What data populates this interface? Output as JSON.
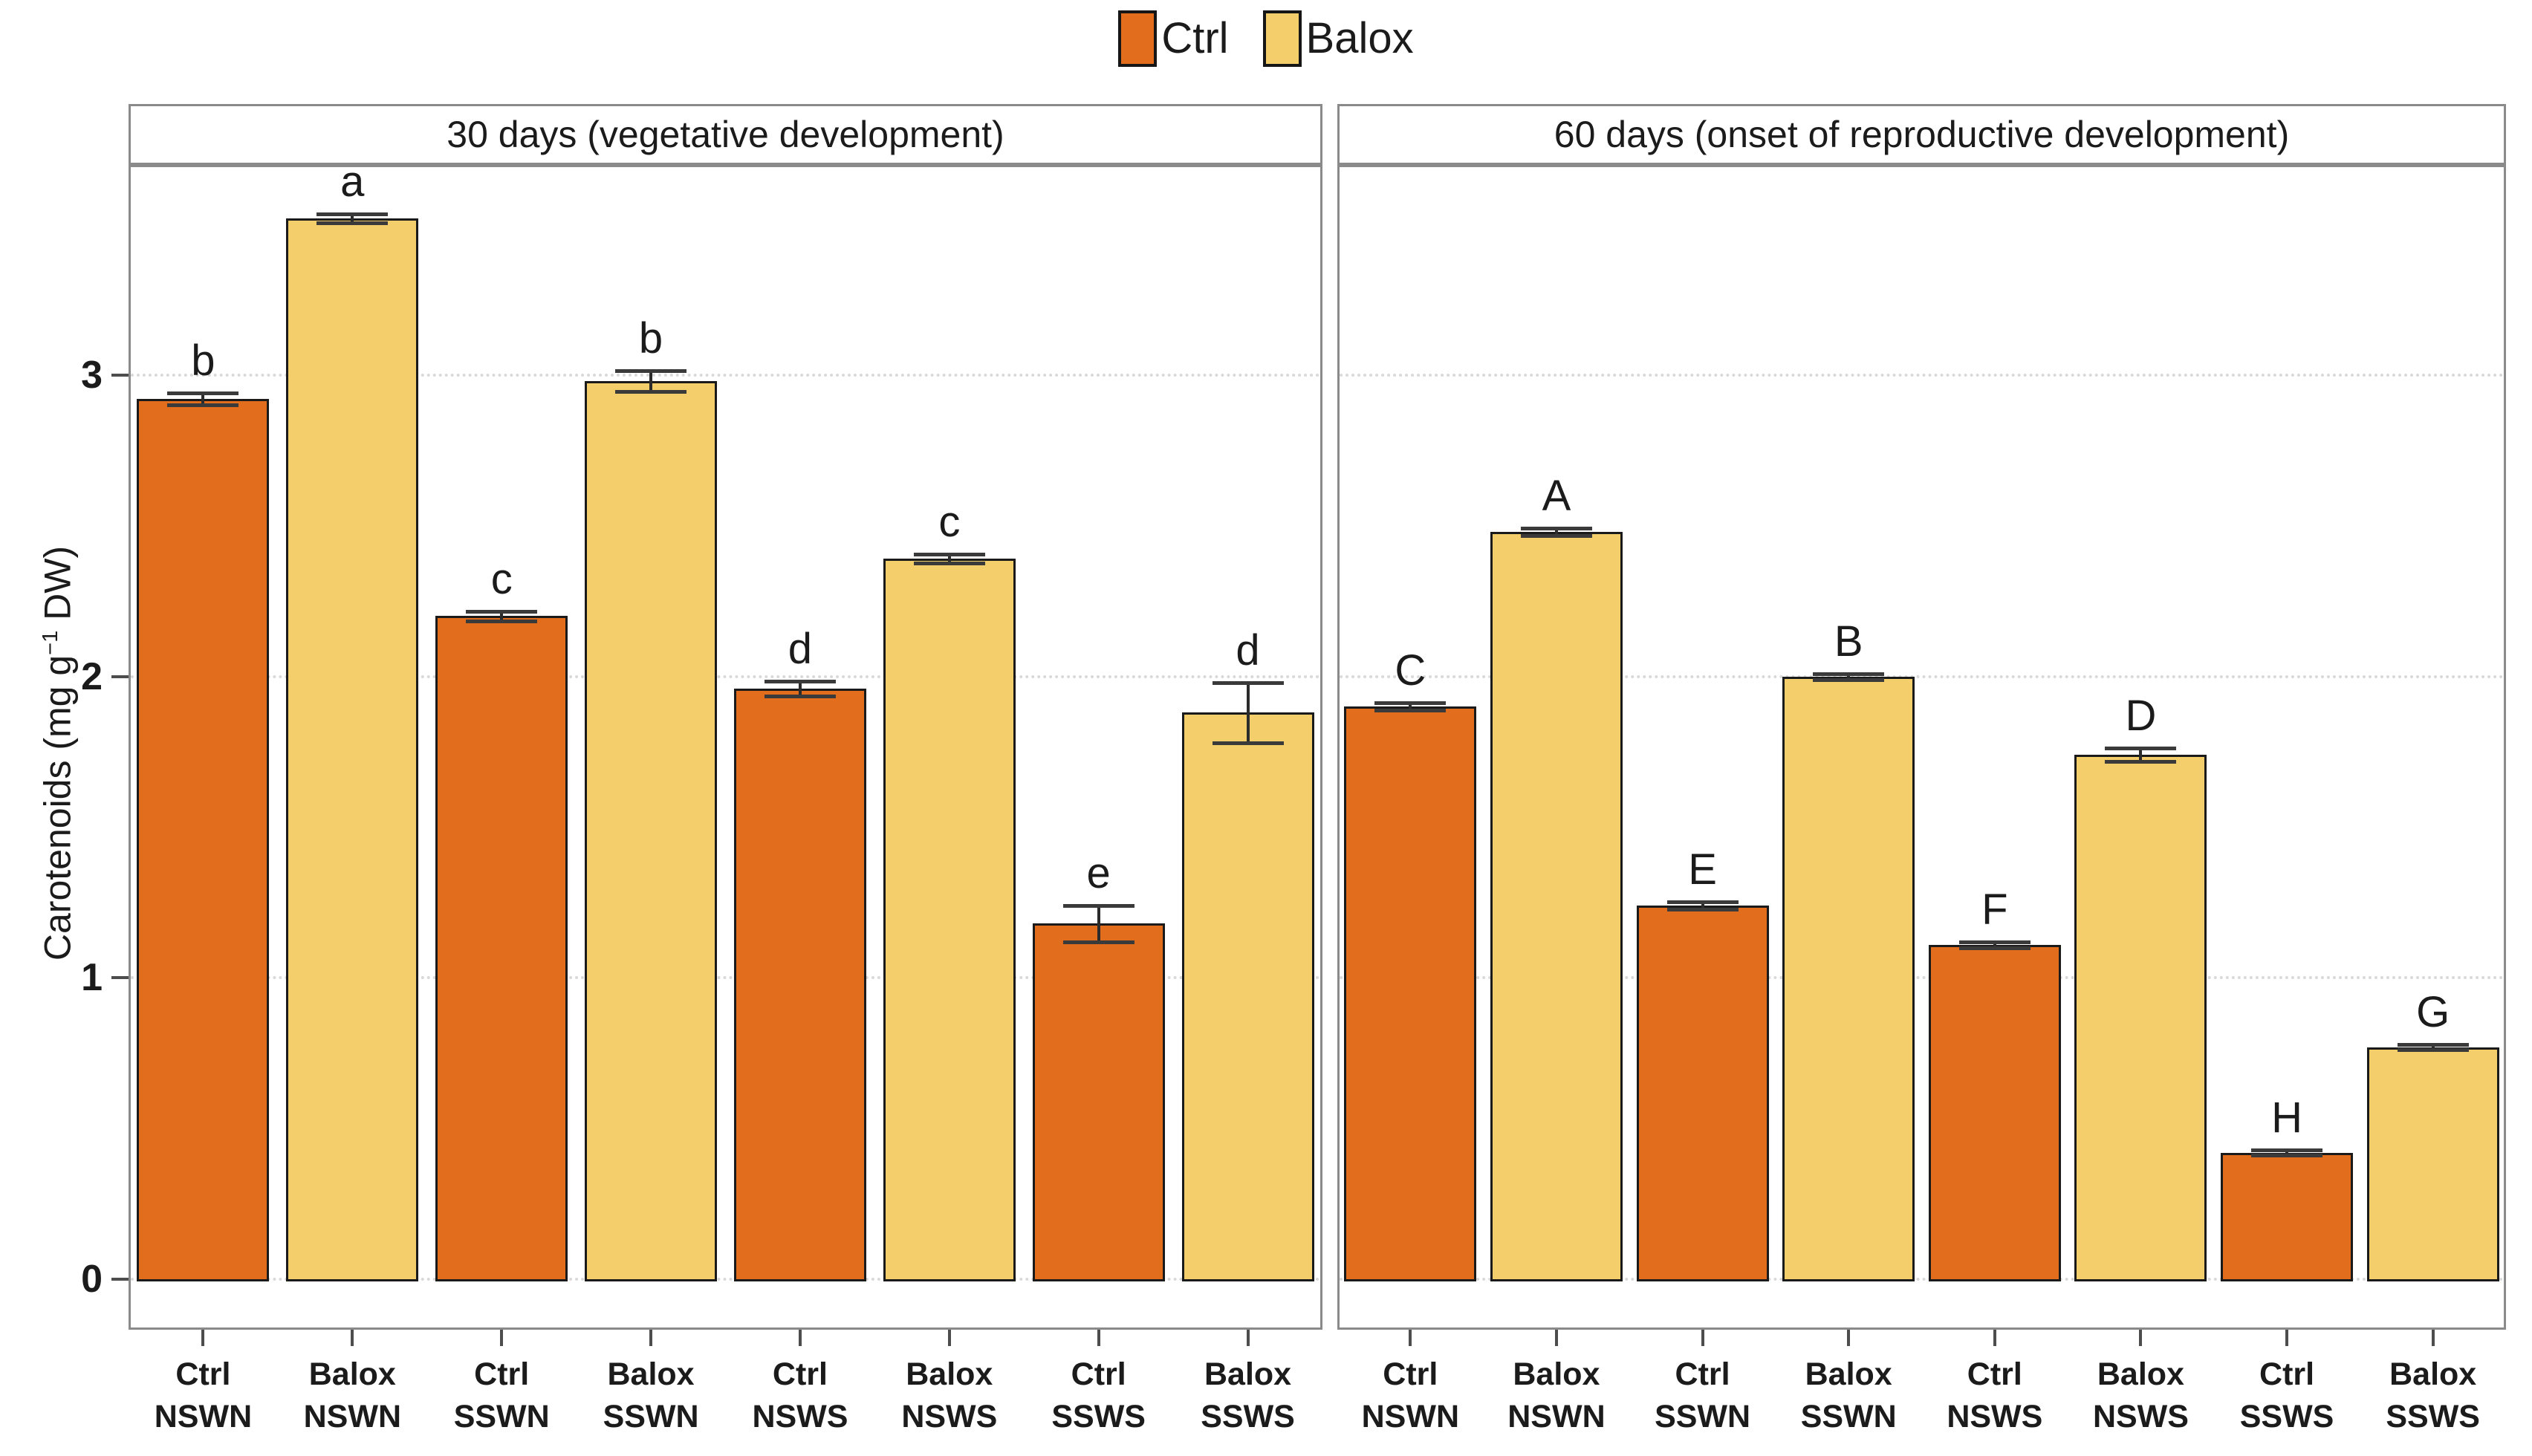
{
  "figure": {
    "legend": {
      "items": [
        {
          "label": "Ctrl",
          "color": "#E26E1D"
        },
        {
          "label": "Balox",
          "color": "#F3CE6A"
        }
      ]
    },
    "y_axis": {
      "title_prefix": "Carotenoids (mg g",
      "title_sup": "−1",
      "title_suffix": " DW)"
    }
  },
  "chart_data": [
    {
      "type": "bar",
      "title": "30 days (vegetative development)",
      "ylabel": "Carotenoids (mg g^-1 DW)",
      "ylim": [
        0,
        3.7
      ],
      "yticks": [
        0,
        1,
        2,
        3
      ],
      "grid": "dotted-horizontal",
      "legend_position": "top-center",
      "bars": [
        {
          "series": "Ctrl",
          "treatment": "NSWN",
          "value": 2.92,
          "error": 0.02,
          "letter": "b"
        },
        {
          "series": "Balox",
          "treatment": "NSWN",
          "value": 3.52,
          "error": 0.015,
          "letter": "a"
        },
        {
          "series": "Ctrl",
          "treatment": "SSWN",
          "value": 2.2,
          "error": 0.015,
          "letter": "c"
        },
        {
          "series": "Balox",
          "treatment": "SSWN",
          "value": 2.98,
          "error": 0.035,
          "letter": "b"
        },
        {
          "series": "Ctrl",
          "treatment": "NSWS",
          "value": 1.96,
          "error": 0.025,
          "letter": "d"
        },
        {
          "series": "Balox",
          "treatment": "NSWS",
          "value": 2.39,
          "error": 0.015,
          "letter": "c"
        },
        {
          "series": "Ctrl",
          "treatment": "SSWS",
          "value": 1.18,
          "error": 0.06,
          "letter": "e"
        },
        {
          "series": "Balox",
          "treatment": "SSWS",
          "value": 1.88,
          "error": 0.1,
          "letter": "d"
        }
      ]
    },
    {
      "type": "bar",
      "title": "60 days (onset of reproductive development)",
      "ylabel": "Carotenoids (mg g^-1 DW)",
      "ylim": [
        0,
        3.7
      ],
      "yticks": [
        0,
        1,
        2,
        3
      ],
      "grid": "dotted-horizontal",
      "legend_position": "top-center",
      "bars": [
        {
          "series": "Ctrl",
          "treatment": "NSWN",
          "value": 1.9,
          "error": 0.012,
          "letter": "C"
        },
        {
          "series": "Balox",
          "treatment": "NSWN",
          "value": 2.48,
          "error": 0.012,
          "letter": "A"
        },
        {
          "series": "Ctrl",
          "treatment": "SSWN",
          "value": 1.24,
          "error": 0.012,
          "letter": "E"
        },
        {
          "series": "Balox",
          "treatment": "SSWN",
          "value": 2.0,
          "error": 0.01,
          "letter": "B"
        },
        {
          "series": "Ctrl",
          "treatment": "NSWS",
          "value": 1.11,
          "error": 0.01,
          "letter": "F"
        },
        {
          "series": "Balox",
          "treatment": "NSWS",
          "value": 1.74,
          "error": 0.022,
          "letter": "D"
        },
        {
          "series": "Ctrl",
          "treatment": "SSWS",
          "value": 0.42,
          "error": 0.008,
          "letter": "H"
        },
        {
          "series": "Balox",
          "treatment": "SSWS",
          "value": 0.77,
          "error": 0.008,
          "letter": "G"
        }
      ]
    }
  ]
}
